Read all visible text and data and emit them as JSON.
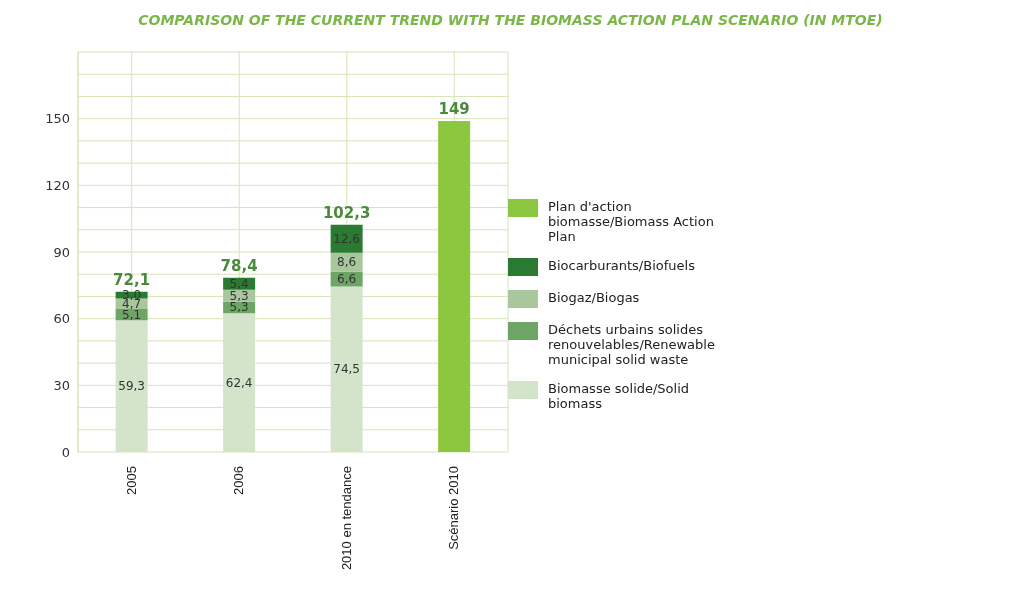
{
  "chart_data": {
    "type": "bar",
    "title": "COMPARISON OF THE CURRENT TREND WITH THE BIOMASS ACTION PLAN SCENARIO (IN MTOE)",
    "categories": [
      "2005",
      "2006",
      "2010 en tendance",
      "Scénario 2010"
    ],
    "stacked": true,
    "series": [
      {
        "name": "Biomasse solide/Solid biomass",
        "color": "#d3e4cb",
        "values": [
          59.3,
          62.4,
          74.5,
          null
        ],
        "value_labels": [
          "59,3",
          "62,4",
          "74,5",
          null
        ]
      },
      {
        "name": "Déchets urbains solides renouvelables/Renewable municipal solid waste",
        "color": "#6da565",
        "values": [
          5.1,
          5.3,
          6.6,
          null
        ],
        "value_labels": [
          "5,1",
          "5,3",
          "6,6",
          null
        ]
      },
      {
        "name": "Biogaz/Biogas",
        "color": "#a9c79d",
        "values": [
          4.7,
          5.3,
          8.6,
          null
        ],
        "value_labels": [
          "4,7",
          "5,3",
          "8,6",
          null
        ]
      },
      {
        "name": "Biocarburants/Biofuels",
        "color": "#2b7a32",
        "values": [
          3.0,
          5.4,
          12.6,
          null
        ],
        "value_labels": [
          "3,0",
          "5,4",
          "12,6",
          null
        ]
      },
      {
        "name": "Plan d'action biomasse/Biomass Action Plan",
        "color": "#8dc63f",
        "values": [
          null,
          null,
          null,
          149
        ],
        "value_labels": [
          null,
          null,
          null,
          null
        ]
      }
    ],
    "totals": [
      "72,1",
      "78,4",
      "102,3",
      "149"
    ],
    "ylim": [
      0,
      180
    ],
    "yticks": [
      0,
      {
        "value": 10,
        "label": null
      },
      {
        "value": 20,
        "label": null
      },
      30,
      {
        "value": 40,
        "label": null
      },
      {
        "value": 50,
        "label": null
      },
      60,
      {
        "value": 70,
        "label": null
      },
      {
        "value": 80,
        "label": null
      },
      90,
      {
        "value": 100,
        "label": null
      },
      {
        "value": 110,
        "label": null
      },
      120,
      {
        "value": 130,
        "label": null
      },
      {
        "value": 140,
        "label": null
      },
      150,
      {
        "value": 160,
        "label": null
      },
      {
        "value": 170,
        "label": null
      },
      {
        "value": 180,
        "label": null
      }
    ],
    "grid": true,
    "legend": "right"
  }
}
